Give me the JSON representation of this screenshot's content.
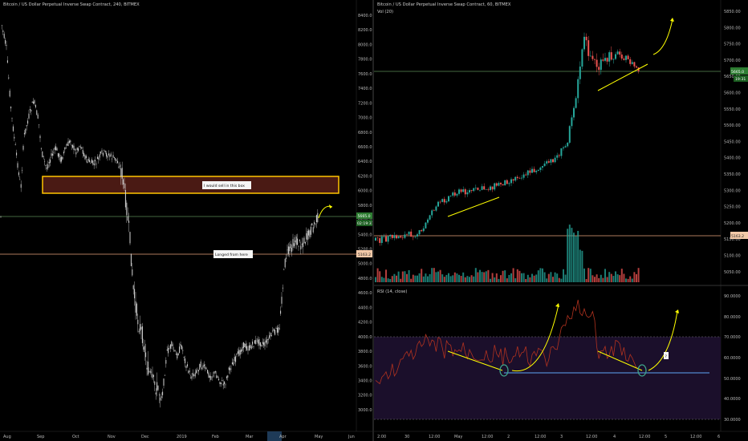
{
  "left": {
    "title": "Bitcoin / US Dollar Perpetual Inverse Swap Contract, 240, BITMEX",
    "price_ticks": [
      "8400.0",
      "8200.0",
      "8000.0",
      "7800.0",
      "7600.0",
      "7400.0",
      "7200.0",
      "7000.0",
      "6800.0",
      "6600.0",
      "6400.0",
      "6200.0",
      "6000.0",
      "5800.0",
      "5600.0",
      "5400.0",
      "5200.0",
      "5000.0",
      "4800.0",
      "4600.0",
      "4400.0",
      "4200.0",
      "4000.0",
      "3800.0",
      "3600.0",
      "3400.0",
      "3200.0",
      "3000.0"
    ],
    "time_ticks": [
      "Aug",
      "Sep",
      "Oct",
      "Nov",
      "Dec",
      "2019",
      "Feb",
      "Mar",
      "Apr",
      "May",
      "Jun"
    ],
    "sell_box_label": "I would sell in this box",
    "longed_label": "Longed from here",
    "price_tag_current": "5665.0",
    "price_tag_countdown": "02:19:31",
    "price_tag_long": "5163.2",
    "colors": {
      "box_fill": "#4a1a14",
      "box_border": "#ffc400",
      "arrow": "#ffff00",
      "candle": "#d8d8d8",
      "long_line": "#e8a37a",
      "green_line": "#5b8d55"
    }
  },
  "right": {
    "title": "Bitcoin / US Dollar Perpetual Inverse Swap Contract, 60, BITMEX",
    "vol_label": "Vol (20)",
    "price_ticks": [
      "5850.00",
      "5800.00",
      "5750.00",
      "5700.00",
      "5650.00",
      "5600.00",
      "5550.00",
      "5500.00",
      "5450.00",
      "5400.00",
      "5350.00",
      "5300.00",
      "5250.00",
      "5200.00",
      "5150.00",
      "5100.00",
      "5050.00"
    ],
    "price_tag_current": "5665.0",
    "price_tag_countdown": "19:31",
    "price_tag_long": "5163.2",
    "rsi_label": "RSI (14, close)",
    "rsi_ticks": [
      "90.0000",
      "80.0000",
      "70.0000",
      "60.0000",
      "50.0000",
      "40.0000",
      "30.0000"
    ],
    "rsi_tag_question": "?",
    "time_ticks": [
      "2:00",
      "30",
      "12:00",
      "May",
      "12:00",
      "2",
      "12:00",
      "3",
      "12:00",
      "4",
      "12:00",
      "5",
      "12:00",
      "6"
    ],
    "colors": {
      "rsi_bg": "#1b0f2b",
      "rsi_line": "#b2321f",
      "rsi_baseline": "#4f86cc",
      "circle": "#3fa88c",
      "arrow": "#ffff00",
      "up_candle": "#26a69a",
      "down_candle": "#ef5350"
    }
  }
}
